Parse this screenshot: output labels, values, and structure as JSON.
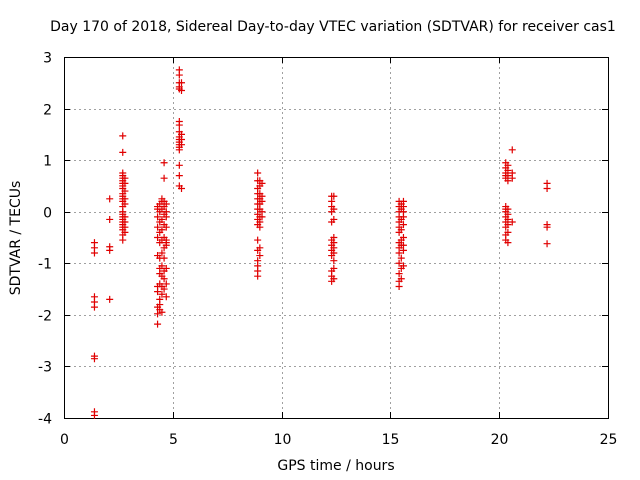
{
  "chart_data": {
    "type": "scatter",
    "title": "Day 170 of 2018, Sidereal Day-to-day VTEC variation (SDTVAR) for receiver cas1",
    "xlabel": "GPS time / hours",
    "ylabel": "SDTVAR / TECUs",
    "xlim": [
      0,
      25
    ],
    "ylim": [
      -4,
      3
    ],
    "xticks": [
      0,
      5,
      10,
      15,
      20,
      25
    ],
    "yticks": [
      -4,
      -3,
      -2,
      -1,
      0,
      1,
      2,
      3
    ],
    "xtick_labels": [
      "0",
      "5",
      "10",
      "15",
      "20",
      "25"
    ],
    "ytick_labels": [
      "-4",
      "-3",
      "-2",
      "-1",
      "0",
      "1",
      "2",
      "3"
    ],
    "grid": true,
    "marker": "+",
    "color": "#e00000",
    "series": [
      {
        "name": "SDTVAR",
        "points": [
          [
            1.4,
            -0.6
          ],
          [
            1.4,
            -0.7
          ],
          [
            1.4,
            -0.8
          ],
          [
            1.4,
            -1.65
          ],
          [
            1.4,
            -1.75
          ],
          [
            1.4,
            -1.85
          ],
          [
            1.4,
            -2.8
          ],
          [
            1.4,
            -2.85
          ],
          [
            1.4,
            -3.88
          ],
          [
            1.4,
            -3.95
          ],
          [
            2.1,
            -0.15
          ],
          [
            2.1,
            0.25
          ],
          [
            2.1,
            -0.68
          ],
          [
            2.1,
            -0.75
          ],
          [
            2.1,
            -1.7
          ],
          [
            2.7,
            1.47
          ],
          [
            2.7,
            1.15
          ],
          [
            2.7,
            0.75
          ],
          [
            2.7,
            0.7
          ],
          [
            2.7,
            0.65
          ],
          [
            2.7,
            0.6
          ],
          [
            2.7,
            0.55
          ],
          [
            2.7,
            0.5
          ],
          [
            2.7,
            0.45
          ],
          [
            2.7,
            0.35
          ],
          [
            2.7,
            0.3
          ],
          [
            2.7,
            0.25
          ],
          [
            2.7,
            0.2
          ],
          [
            2.7,
            0.1
          ],
          [
            2.7,
            0.0
          ],
          [
            2.7,
            -0.05
          ],
          [
            2.7,
            -0.1
          ],
          [
            2.7,
            -0.15
          ],
          [
            2.7,
            -0.2
          ],
          [
            2.7,
            -0.25
          ],
          [
            2.7,
            -0.3
          ],
          [
            2.7,
            -0.35
          ],
          [
            2.7,
            -0.45
          ],
          [
            2.7,
            -0.55
          ],
          [
            2.8,
            0.65
          ],
          [
            2.8,
            0.55
          ],
          [
            2.8,
            0.4
          ],
          [
            2.8,
            0.25
          ],
          [
            2.8,
            0.15
          ],
          [
            2.8,
            -0.1
          ],
          [
            2.8,
            -0.2
          ],
          [
            2.8,
            -0.3
          ],
          [
            2.8,
            -0.4
          ],
          [
            4.3,
            -2.18
          ],
          [
            4.3,
            -1.98
          ],
          [
            4.3,
            -1.85
          ],
          [
            4.3,
            -1.55
          ],
          [
            4.3,
            -1.45
          ],
          [
            4.3,
            -0.85
          ],
          [
            4.3,
            -0.5
          ],
          [
            4.3,
            -0.3
          ],
          [
            4.3,
            -0.1
          ],
          [
            4.3,
            0.05
          ],
          [
            4.3,
            0.1
          ],
          [
            4.4,
            -1.9
          ],
          [
            4.4,
            -1.8
          ],
          [
            4.4,
            -1.7
          ],
          [
            4.4,
            -1.4
          ],
          [
            4.4,
            -1.2
          ],
          [
            4.4,
            -1.1
          ],
          [
            4.4,
            -0.9
          ],
          [
            4.4,
            -0.6
          ],
          [
            4.4,
            -0.4
          ],
          [
            4.4,
            -0.2
          ],
          [
            4.4,
            0.0
          ],
          [
            4.4,
            0.15
          ],
          [
            4.5,
            -1.95
          ],
          [
            4.5,
            -1.6
          ],
          [
            4.5,
            -1.45
          ],
          [
            4.5,
            -1.25
          ],
          [
            4.5,
            -1.05
          ],
          [
            4.5,
            -0.8
          ],
          [
            4.5,
            -0.55
          ],
          [
            4.5,
            -0.35
          ],
          [
            4.5,
            -0.15
          ],
          [
            4.5,
            0.05
          ],
          [
            4.5,
            0.2
          ],
          [
            4.5,
            0.25
          ],
          [
            4.6,
            -1.5
          ],
          [
            4.6,
            -1.3
          ],
          [
            4.6,
            -1.15
          ],
          [
            4.6,
            -0.9
          ],
          [
            4.6,
            -0.7
          ],
          [
            4.6,
            -0.5
          ],
          [
            4.6,
            -0.25
          ],
          [
            4.6,
            -0.05
          ],
          [
            4.6,
            0.1
          ],
          [
            4.6,
            0.2
          ],
          [
            4.6,
            0.65
          ],
          [
            4.6,
            0.95
          ],
          [
            4.7,
            -1.65
          ],
          [
            4.7,
            -1.4
          ],
          [
            4.7,
            -1.1
          ],
          [
            4.7,
            -0.65
          ],
          [
            4.7,
            -0.6
          ],
          [
            4.7,
            -0.55
          ],
          [
            4.7,
            -0.3
          ],
          [
            4.7,
            -0.1
          ],
          [
            4.7,
            0.0
          ],
          [
            4.7,
            0.15
          ],
          [
            5.3,
            2.75
          ],
          [
            5.3,
            2.65
          ],
          [
            5.3,
            2.5
          ],
          [
            5.3,
            2.42
          ],
          [
            5.3,
            2.38
          ],
          [
            5.3,
            1.75
          ],
          [
            5.3,
            1.68
          ],
          [
            5.3,
            1.55
          ],
          [
            5.3,
            1.45
          ],
          [
            5.3,
            1.4
          ],
          [
            5.3,
            1.35
          ],
          [
            5.3,
            1.3
          ],
          [
            5.3,
            1.25
          ],
          [
            5.3,
            1.2
          ],
          [
            5.3,
            0.9
          ],
          [
            5.3,
            0.7
          ],
          [
            5.3,
            0.5
          ],
          [
            5.4,
            2.5
          ],
          [
            5.4,
            2.35
          ],
          [
            5.4,
            1.5
          ],
          [
            5.4,
            1.4
          ],
          [
            5.4,
            1.3
          ],
          [
            5.4,
            0.45
          ],
          [
            8.9,
            0.75
          ],
          [
            8.9,
            0.6
          ],
          [
            8.9,
            0.45
          ],
          [
            8.9,
            0.35
          ],
          [
            8.9,
            0.25
          ],
          [
            8.9,
            0.15
          ],
          [
            8.9,
            0.05
          ],
          [
            8.9,
            -0.05
          ],
          [
            8.9,
            -0.15
          ],
          [
            8.9,
            -0.25
          ],
          [
            8.9,
            -0.55
          ],
          [
            8.9,
            -0.75
          ],
          [
            8.9,
            -0.95
          ],
          [
            8.9,
            -1.05
          ],
          [
            8.9,
            -1.15
          ],
          [
            8.9,
            -1.25
          ],
          [
            9.0,
            0.6
          ],
          [
            9.0,
            0.5
          ],
          [
            9.0,
            0.35
          ],
          [
            9.0,
            0.25
          ],
          [
            9.0,
            0.15
          ],
          [
            9.0,
            0.05
          ],
          [
            9.0,
            -0.1
          ],
          [
            9.0,
            -0.2
          ],
          [
            9.0,
            -0.3
          ],
          [
            9.0,
            -0.7
          ],
          [
            9.0,
            -0.85
          ],
          [
            9.1,
            0.55
          ],
          [
            9.1,
            0.3
          ],
          [
            9.1,
            0.2
          ],
          [
            9.1,
            0.0
          ],
          [
            9.1,
            -0.1
          ],
          [
            12.3,
            0.3
          ],
          [
            12.3,
            0.2
          ],
          [
            12.3,
            0.1
          ],
          [
            12.3,
            0.0
          ],
          [
            12.3,
            -0.2
          ],
          [
            12.3,
            -0.55
          ],
          [
            12.3,
            -0.65
          ],
          [
            12.3,
            -0.75
          ],
          [
            12.3,
            -0.85
          ],
          [
            12.3,
            -1.15
          ],
          [
            12.3,
            -1.25
          ],
          [
            12.3,
            -1.35
          ],
          [
            12.4,
            0.3
          ],
          [
            12.4,
            0.05
          ],
          [
            12.4,
            -0.15
          ],
          [
            12.4,
            -0.5
          ],
          [
            12.4,
            -0.6
          ],
          [
            12.4,
            -0.7
          ],
          [
            12.4,
            -0.8
          ],
          [
            12.4,
            -0.95
          ],
          [
            12.4,
            -1.1
          ],
          [
            12.4,
            -1.3
          ],
          [
            15.4,
            0.2
          ],
          [
            15.4,
            0.1
          ],
          [
            15.4,
            0.0
          ],
          [
            15.4,
            -0.1
          ],
          [
            15.4,
            -0.2
          ],
          [
            15.4,
            -0.3
          ],
          [
            15.4,
            -0.4
          ],
          [
            15.4,
            -0.6
          ],
          [
            15.4,
            -0.7
          ],
          [
            15.4,
            -0.8
          ],
          [
            15.4,
            -1.0
          ],
          [
            15.4,
            -1.2
          ],
          [
            15.4,
            -1.35
          ],
          [
            15.4,
            -1.45
          ],
          [
            15.5,
            0.15
          ],
          [
            15.5,
            0.05
          ],
          [
            15.5,
            -0.15
          ],
          [
            15.5,
            -0.35
          ],
          [
            15.5,
            -0.55
          ],
          [
            15.5,
            -0.65
          ],
          [
            15.5,
            -0.9
          ],
          [
            15.5,
            -1.1
          ],
          [
            15.5,
            -1.3
          ],
          [
            15.6,
            0.2
          ],
          [
            15.6,
            0.1
          ],
          [
            15.6,
            0.0
          ],
          [
            15.6,
            -0.1
          ],
          [
            15.6,
            -0.25
          ],
          [
            15.6,
            -0.5
          ],
          [
            15.6,
            -0.65
          ],
          [
            15.6,
            -0.75
          ],
          [
            15.6,
            -1.05
          ],
          [
            20.3,
            0.95
          ],
          [
            20.3,
            0.85
          ],
          [
            20.3,
            0.75
          ],
          [
            20.3,
            0.7
          ],
          [
            20.3,
            0.65
          ],
          [
            20.3,
            0.1
          ],
          [
            20.3,
            0.05
          ],
          [
            20.3,
            0.0
          ],
          [
            20.3,
            -0.1
          ],
          [
            20.3,
            -0.2
          ],
          [
            20.3,
            -0.3
          ],
          [
            20.3,
            -0.45
          ],
          [
            20.3,
            -0.55
          ],
          [
            20.4,
            0.9
          ],
          [
            20.4,
            0.8
          ],
          [
            20.4,
            0.7
          ],
          [
            20.4,
            0.6
          ],
          [
            20.4,
            0.05
          ],
          [
            20.4,
            -0.05
          ],
          [
            20.4,
            -0.15
          ],
          [
            20.4,
            -0.25
          ],
          [
            20.4,
            -0.4
          ],
          [
            20.4,
            -0.6
          ],
          [
            20.6,
            1.2
          ],
          [
            20.6,
            0.75
          ],
          [
            20.6,
            0.65
          ],
          [
            20.6,
            -0.2
          ],
          [
            22.2,
            0.55
          ],
          [
            22.2,
            0.45
          ],
          [
            22.2,
            -0.25
          ],
          [
            22.2,
            -0.3
          ],
          [
            22.2,
            -0.62
          ]
        ]
      }
    ]
  }
}
